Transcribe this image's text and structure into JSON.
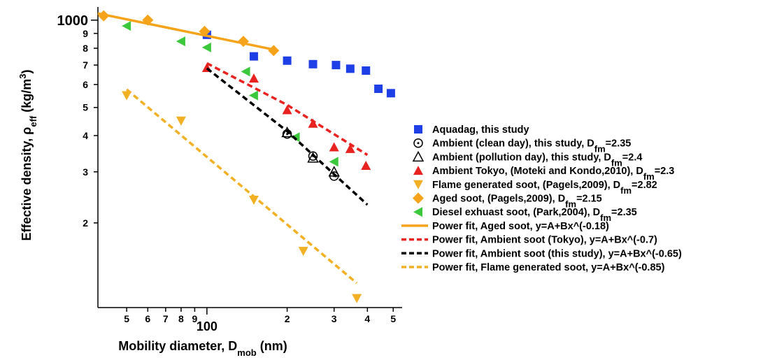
{
  "chart_data": {
    "type": "scatter",
    "log_x": true,
    "log_y": true,
    "xlim": [
      39,
      540
    ],
    "ylim": [
      105,
      1110
    ],
    "xticks": [
      {
        "value": 50,
        "label": "5"
      },
      {
        "value": 60,
        "label": "6"
      },
      {
        "value": 70,
        "label": "7"
      },
      {
        "value": 80,
        "label": "8"
      },
      {
        "value": 90,
        "label": "9"
      },
      100,
      {
        "value": 200,
        "label": "2"
      },
      {
        "value": 300,
        "label": "3"
      },
      {
        "value": 400,
        "label": "4"
      },
      {
        "value": 500,
        "label": "5"
      }
    ],
    "yticks": [
      {
        "value": 200,
        "label": "2"
      },
      {
        "value": 300,
        "label": "3"
      },
      {
        "value": 400,
        "label": "4"
      },
      {
        "value": 500,
        "label": "5"
      },
      {
        "value": 600,
        "label": "6"
      },
      {
        "value": 700,
        "label": "7"
      },
      {
        "value": 800,
        "label": "8"
      },
      {
        "value": 900,
        "label": "9"
      },
      1000
    ],
    "x_label": [
      "Mobility diameter, D",
      "mob",
      " (nm)"
    ],
    "y_label": [
      "Effective density, ρ",
      "eff",
      " (kg/m",
      "3",
      ")"
    ],
    "series": [
      {
        "name": [
          "Aquadag, this study"
        ],
        "marker": "square",
        "color": "#1f3fe6",
        "x": [
          100,
          150,
          200,
          250,
          305,
          345,
          395,
          440,
          490
        ],
        "values": [
          890,
          750,
          725,
          705,
          700,
          680,
          670,
          580,
          560
        ]
      },
      {
        "name": [
          "Ambient (clean day), this study, D",
          "fm",
          "=2.35"
        ],
        "marker": "circle-dot",
        "color": "#000000",
        "x": [
          200,
          250,
          300
        ],
        "values": [
          405,
          340,
          290
        ]
      },
      {
        "name": [
          "Ambient (pollution day), this study, D",
          "fm",
          "=2.4"
        ],
        "marker": "triangle-open",
        "color": "#000000",
        "x": [
          200,
          250,
          300
        ],
        "values": [
          410,
          335,
          300
        ]
      },
      {
        "name": [
          "Ambient Tokyo, (Moteki and Kondo,2010), D",
          "fm",
          "=2.3"
        ],
        "marker": "triangle",
        "color": "#e8221e",
        "x": [
          100,
          150,
          200,
          250,
          300,
          345,
          395
        ],
        "values": [
          685,
          630,
          490,
          440,
          365,
          360,
          315
        ]
      },
      {
        "name": [
          "Flame generated soot, (Pagels,2009), D",
          "fm",
          "=2.82"
        ],
        "marker": "triangle-down",
        "color": "#f2b124",
        "x": [
          50,
          80,
          150,
          230,
          365
        ],
        "values": [
          550,
          450,
          240,
          160,
          110
        ]
      },
      {
        "name": [
          "Aged soot,  (Pagels,2009), D",
          "fm",
          "=2.15"
        ],
        "marker": "diamond",
        "color": "#f5a31a",
        "x": [
          41,
          60,
          98,
          137,
          178
        ],
        "values": [
          1035,
          1000,
          915,
          845,
          785
        ]
      },
      {
        "name": [
          "Diesel exhuast soot, (Park,2004), D",
          "fm",
          "=2.35"
        ],
        "marker": "triangle-left",
        "color": "#3cc83c",
        "x": [
          50,
          80,
          100,
          140,
          150,
          215,
          300
        ],
        "values": [
          955,
          845,
          805,
          665,
          550,
          395,
          325
        ]
      },
      {
        "name": [
          "Power fit, Aged soot, y=A+Bx^(-0.18)"
        ],
        "line": "solid",
        "color": "#f5a31a",
        "x": [
          39,
          180
        ],
        "values": [
          1055,
          790
        ]
      },
      {
        "name": [
          "Power fit, Ambient soot (Tokyo), y=A+Bx^(-0.7)"
        ],
        "line": "dashed",
        "color": "#e8221e",
        "x": [
          100,
          200,
          400
        ],
        "values": [
          710,
          510,
          343
        ]
      },
      {
        "name": [
          "Power fit, Ambient soot (this study), y=A+Bx^(-0.65)"
        ],
        "line": "dashed",
        "color": "#000000",
        "x": [
          100,
          200,
          400
        ],
        "values": [
          682,
          414,
          231
        ]
      },
      {
        "name": [
          "Power fit, Flame generated soot, y=A+Bx^(-0.85)"
        ],
        "line": "dashed",
        "color": "#f2b124",
        "x": [
          50,
          365
        ],
        "values": [
          577,
          124
        ]
      }
    ]
  }
}
